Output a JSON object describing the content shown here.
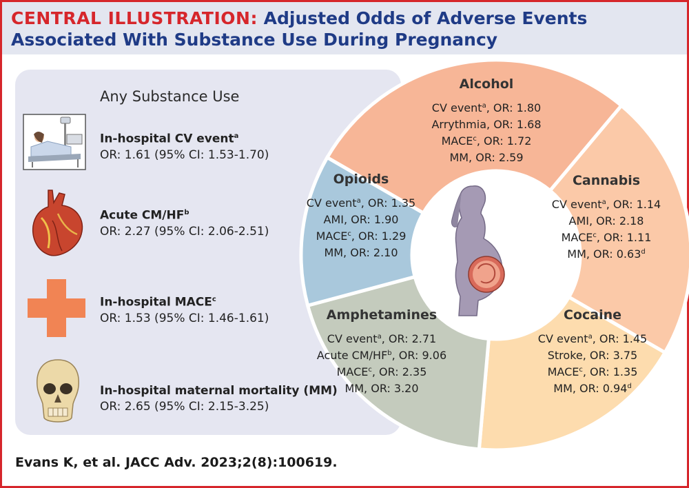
{
  "title": {
    "lead": "CENTRAL ILLUSTRATION:",
    "text": "Adjusted Odds of Adverse Events Associated With Substance Use During Pregnancy"
  },
  "panel": {
    "heading": "Any Substance Use",
    "items": [
      {
        "name": "In-hospital CV event",
        "sup": "a",
        "value": "OR: 1.61 (95% CI: 1.53-1.70)",
        "icon": "hospital-bed-icon"
      },
      {
        "name": "Acute CM/HF",
        "sup": "b",
        "value": "OR: 2.27 (95% CI: 2.06-2.51)",
        "icon": "heart-icon"
      },
      {
        "name": "In-hospital MACE",
        "sup": "c",
        "value": "OR: 1.53 (95% CI: 1.46-1.61)",
        "icon": "medical-cross-icon"
      },
      {
        "name": "In-hospital maternal mortality (MM)",
        "sup": "",
        "value": "OR: 2.65 (95% CI: 2.15-3.25)",
        "icon": "skull-icon"
      }
    ]
  },
  "wheel": {
    "center_icon": "pregnant-woman-icon",
    "segments": [
      {
        "name": "Alcohol",
        "color": "#f7b697",
        "lines": [
          {
            "label": "CV event",
            "sup": "a",
            "or": ", OR: 1.80"
          },
          {
            "label": "Arrythmia",
            "sup": "",
            "or": ", OR: 1.68"
          },
          {
            "label": "MACE",
            "sup": "c",
            "or": ", OR: 1.72"
          },
          {
            "label": "MM",
            "sup": "",
            "or": ", OR: 2.59"
          }
        ]
      },
      {
        "name": "Cannabis",
        "color": "#fbc9a8",
        "lines": [
          {
            "label": "CV event",
            "sup": "a",
            "or": ", OR: 1.14"
          },
          {
            "label": "AMI",
            "sup": "",
            "or": ", OR: 2.18"
          },
          {
            "label": "MACE",
            "sup": "c",
            "or": ", OR: 1.11"
          },
          {
            "label": "MM",
            "sup": "",
            "or": ", OR: 0.63",
            "sup2": "d"
          }
        ]
      },
      {
        "name": "Cocaine",
        "color": "#fddcae",
        "lines": [
          {
            "label": "CV event",
            "sup": "a",
            "or": ", OR: 1.45"
          },
          {
            "label": "Stroke",
            "sup": "",
            "or": ", OR: 3.75"
          },
          {
            "label": "MACE",
            "sup": "c",
            "or": ", OR: 1.35"
          },
          {
            "label": "MM",
            "sup": "",
            "or": ", OR: 0.94",
            "sup2": "d"
          }
        ]
      },
      {
        "name": "Amphetamines",
        "color": "#c4cbbd",
        "lines": [
          {
            "label": "CV event",
            "sup": "a",
            "or": ", OR: 2.71"
          },
          {
            "label": "Acute CM/HF",
            "sup": "b",
            "or": ", OR: 9.06"
          },
          {
            "label": "MACE",
            "sup": "c",
            "or": ", OR: 2.35"
          },
          {
            "label": "MM",
            "sup": "",
            "or": ", OR: 3.20"
          }
        ]
      },
      {
        "name": "Opioids",
        "color": "#a9c8dc",
        "lines": [
          {
            "label": "CV event",
            "sup": "a",
            "or": ", OR: 1.35"
          },
          {
            "label": "AMI",
            "sup": "",
            "or": ", OR: 1.90"
          },
          {
            "label": "MACE",
            "sup": "c",
            "or": ", OR: 1.29"
          },
          {
            "label": "MM",
            "sup": "",
            "or": ", OR: 2.10"
          }
        ]
      }
    ]
  },
  "citation": "Evans K, et al. JACC Adv. 2023;2(8):100619."
}
